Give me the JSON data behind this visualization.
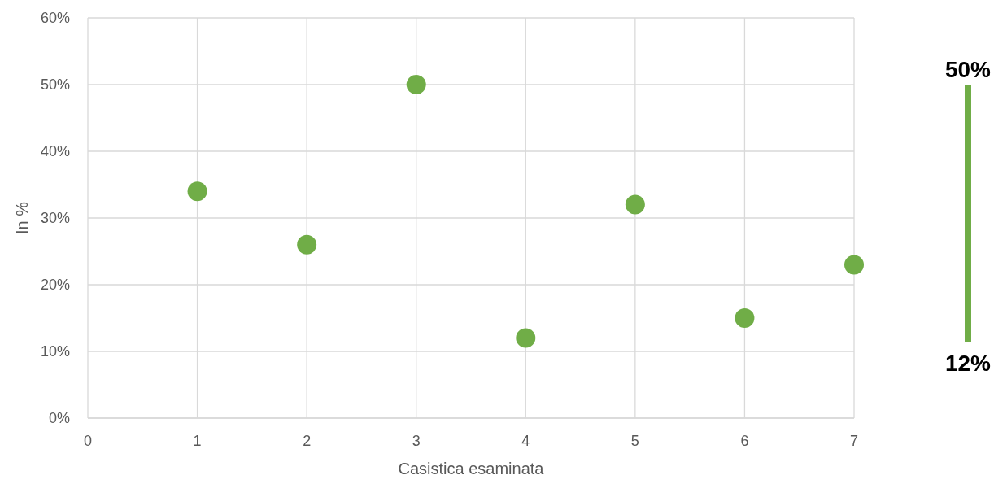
{
  "chart_data": {
    "type": "scatter",
    "xlabel": "Casistica esaminata",
    "ylabel": "In %",
    "x": [
      1,
      2,
      3,
      4,
      5,
      6,
      7
    ],
    "series": [
      {
        "color": "#70ad47",
        "values": [
          0.34,
          0.26,
          0.5,
          0.12,
          0.32,
          0.15,
          0.23
        ]
      }
    ],
    "xlim": [
      0,
      7
    ],
    "xticks": [
      0,
      1,
      2,
      3,
      4,
      5,
      6,
      7
    ],
    "ylim": [
      0,
      0.6
    ],
    "yticks": [
      {
        "value": 0,
        "label": "0%"
      },
      {
        "value": 0.1,
        "label": "10%"
      },
      {
        "value": 0.2,
        "label": "20%"
      },
      {
        "value": 0.3,
        "label": "30%"
      },
      {
        "value": 0.4,
        "label": "40%"
      },
      {
        "value": 0.5,
        "label": "50%"
      },
      {
        "value": 0.6,
        "label": "60%"
      }
    ],
    "grid": true,
    "marker": "circle",
    "annotations": [
      "50%",
      "12%"
    ]
  }
}
